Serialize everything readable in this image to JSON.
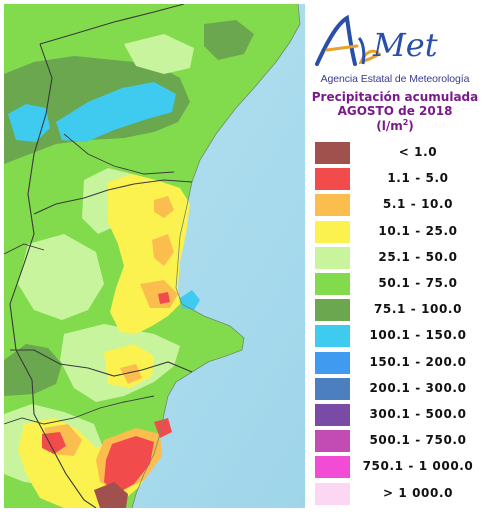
{
  "header": {
    "logo_text": "AEmet",
    "agency": "Agencia Estatal de Meteorología"
  },
  "legend": {
    "title_line1": "Precipitación acumulada",
    "title_line2": "AGOSTO de 2018",
    "units_base": "(l/m",
    "units_exp": "2",
    "units_close": ")",
    "classes": [
      {
        "label": "< 1.0",
        "color": "#a0504d"
      },
      {
        "label": "1.1 - 5.0",
        "color": "#f24b4b"
      },
      {
        "label": "5.1 - 10.0",
        "color": "#fbbd4e"
      },
      {
        "label": "10.1 - 25.0",
        "color": "#fbf24f"
      },
      {
        "label": "25.1 - 50.0",
        "color": "#c8f49e"
      },
      {
        "label": "50.1 - 75.0",
        "color": "#82db4d"
      },
      {
        "label": "75.1 - 100.0",
        "color": "#6aa74f"
      },
      {
        "label": "100.1 - 150.0",
        "color": "#3fcbf0"
      },
      {
        "label": "150.1 - 200.0",
        "color": "#3f9af0"
      },
      {
        "label": "200.1 - 300.0",
        "color": "#4b7fbf"
      },
      {
        "label": "300.1 - 500.0",
        "color": "#7a4ba6"
      },
      {
        "label": "500.1 - 750.0",
        "color": "#c34bb4"
      },
      {
        "label": "750.1 - 1 000.0",
        "color": "#f24bd6"
      },
      {
        "label": "> 1 000.0",
        "color": "#fbd7f3"
      }
    ]
  },
  "map": {
    "sea_color": "#a9dcee",
    "region": "Comunitat Valenciana"
  }
}
